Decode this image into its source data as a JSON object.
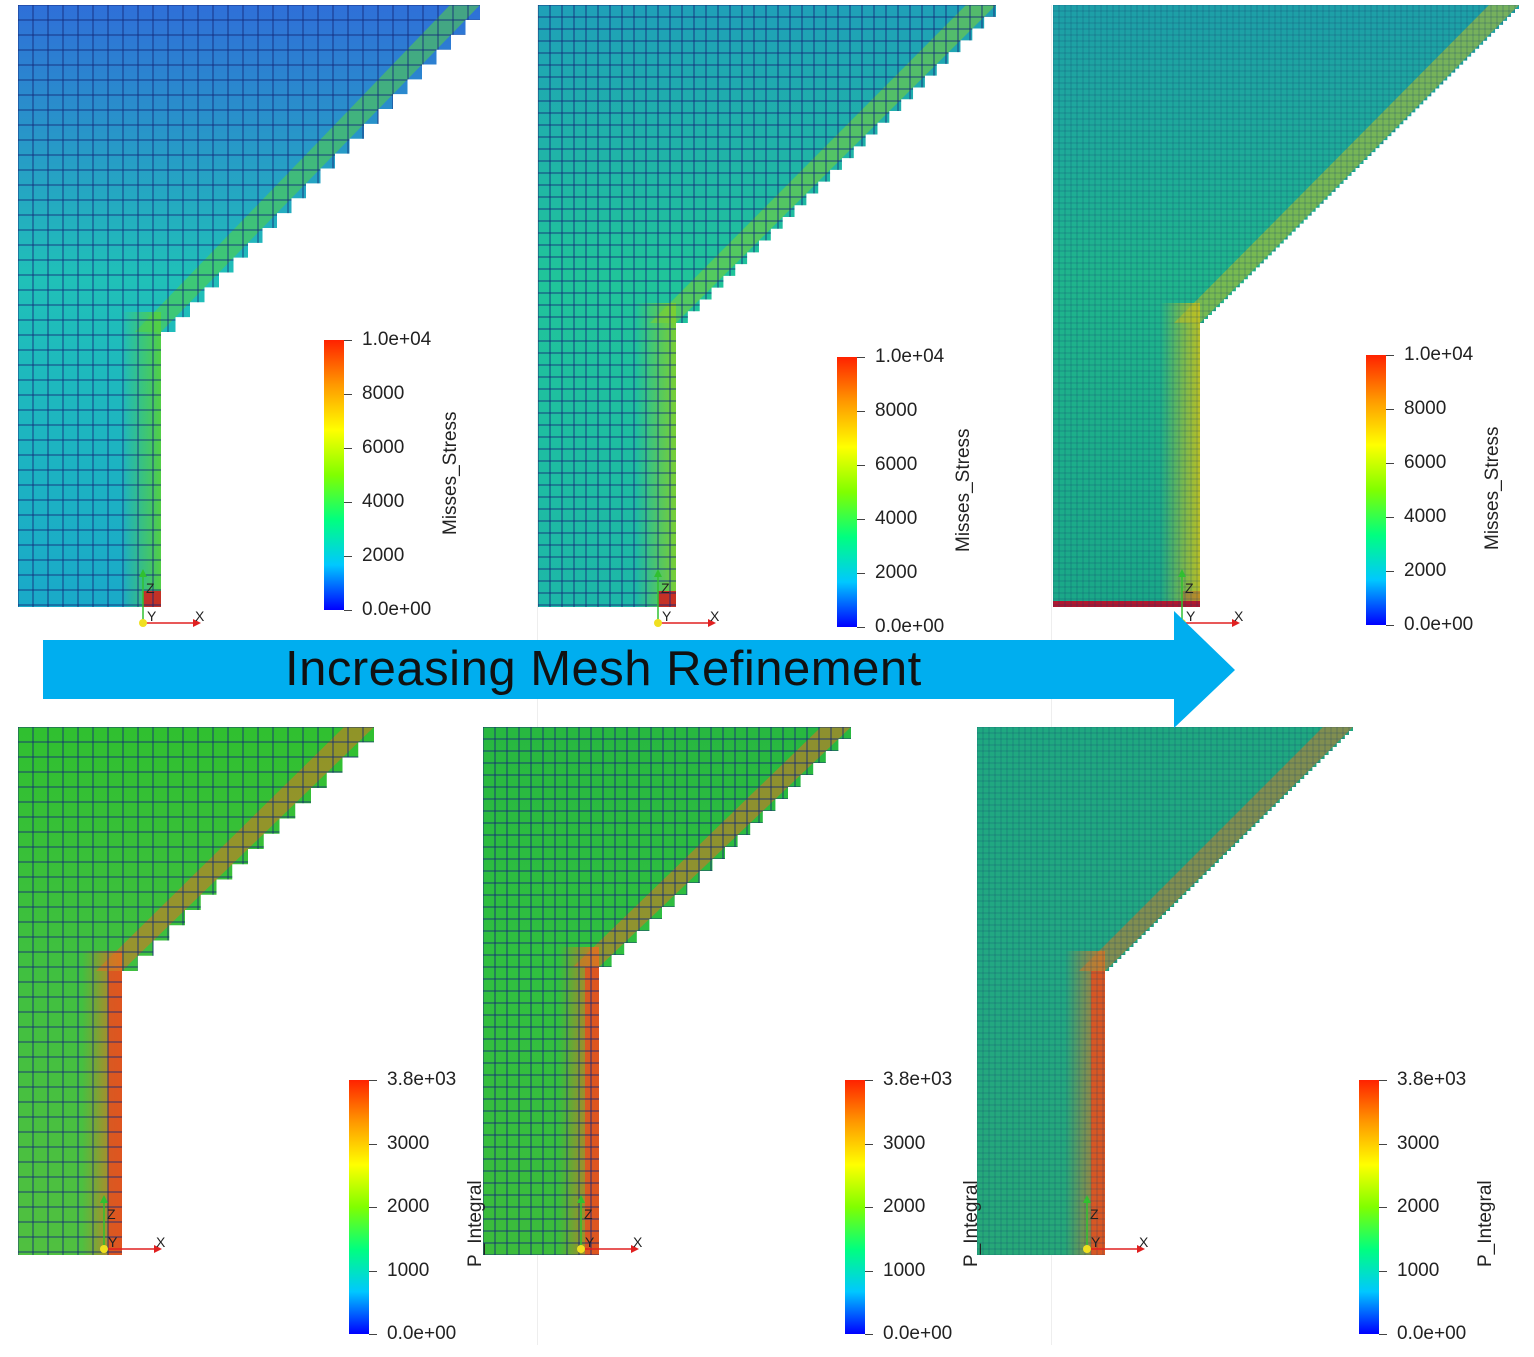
{
  "banner": {
    "text": "Increasing Mesh Refinement",
    "color": "#00aeef"
  },
  "panels": [
    {
      "name": "coarse-mises",
      "field": "Misses_Stress",
      "ticks": [
        "1.0e+04",
        "8000",
        "6000",
        "4000",
        "2000",
        "0.0e+00"
      ],
      "mesh": "coarse",
      "axes": {
        "up": "Z",
        "right": "X",
        "normal": "Y"
      }
    },
    {
      "name": "medium-mises",
      "field": "Misses_Stress",
      "ticks": [
        "1.0e+04",
        "8000",
        "6000",
        "4000",
        "2000",
        "0.0e+00"
      ],
      "mesh": "medium",
      "axes": {
        "up": "Z",
        "right": "X",
        "normal": "Y"
      }
    },
    {
      "name": "fine-mises",
      "field": "Misses_Stress",
      "ticks": [
        "1.0e+04",
        "8000",
        "6000",
        "4000",
        "2000",
        "0.0e+00"
      ],
      "mesh": "fine",
      "axes": {
        "up": "Z",
        "right": "X",
        "normal": "Y"
      }
    },
    {
      "name": "coarse-pintegral",
      "field": "P_Integral",
      "ticks": [
        "3.8e+03",
        "3000",
        "2000",
        "1000",
        "0.0e+00"
      ],
      "mesh": "coarse",
      "axes": {
        "up": "Z",
        "right": "X",
        "normal": "Y"
      }
    },
    {
      "name": "medium-pintegral",
      "field": "P_Integral",
      "ticks": [
        "3.8e+03",
        "3000",
        "2000",
        "1000",
        "0.0e+00"
      ],
      "mesh": "medium",
      "axes": {
        "up": "Z",
        "right": "X",
        "normal": "Y"
      }
    },
    {
      "name": "fine-pintegral",
      "field": "P_Integral",
      "ticks": [
        "3.8e+03",
        "3000",
        "2000",
        "1000",
        "0.0e+00"
      ],
      "mesh": "fine",
      "axes": {
        "up": "Z",
        "right": "X",
        "normal": "Y"
      }
    }
  ],
  "colormap": [
    "#0000ff",
    "#00c8ff",
    "#00ff80",
    "#80ff00",
    "#ffff00",
    "#ff9900",
    "#ff2200"
  ]
}
